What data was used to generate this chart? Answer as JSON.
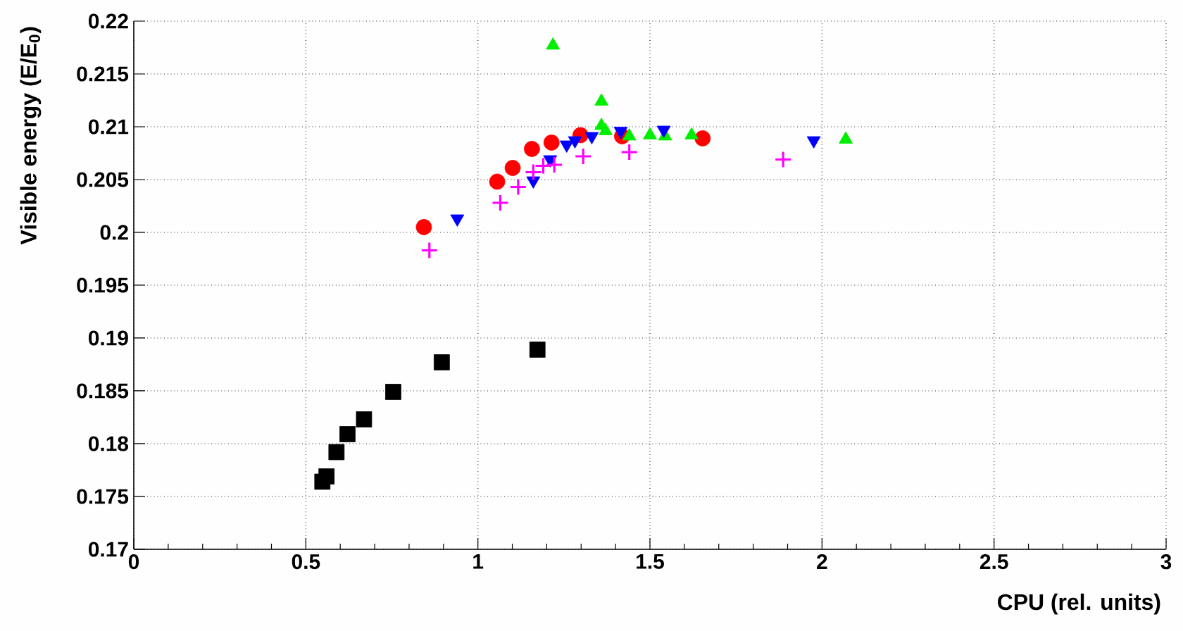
{
  "chart_data": {
    "type": "scatter",
    "xlabel": "CPU (rel. units)",
    "ylabel": "Visible energy (E/E$_{0}$)",
    "xlim": [
      0,
      3
    ],
    "ylim": [
      0.17,
      0.22
    ],
    "xticks": [
      0,
      0.5,
      1,
      1.5,
      2,
      2.5,
      3
    ],
    "yticks": [
      0.17,
      0.175,
      0.18,
      0.185,
      0.19,
      0.195,
      0.2,
      0.205,
      0.21,
      0.215,
      0.22
    ],
    "grid": true,
    "series": [
      {
        "color": "#000000",
        "marker": "square",
        "x": [
          0.548,
          0.56,
          0.589,
          0.621,
          0.669,
          0.754,
          0.895,
          1.173
        ],
        "values": [
          0.1764,
          0.1769,
          0.1792,
          0.1809,
          0.1823,
          0.1849,
          0.1877,
          0.1889
        ]
      },
      {
        "color": "#ff0000",
        "marker": "circle",
        "x": [
          0.843,
          1.056,
          1.101,
          1.157,
          1.214,
          1.298,
          1.419,
          1.653
        ],
        "values": [
          0.2005,
          0.2048,
          0.2061,
          0.2079,
          0.2085,
          0.2092,
          0.2091,
          0.2089
        ]
      },
      {
        "color": "#00ee00",
        "marker": "triangle",
        "x": [
          1.218,
          1.359,
          1.359,
          1.371,
          1.44,
          1.5,
          1.544,
          1.621,
          2.069
        ],
        "values": [
          0.2177,
          0.2124,
          0.2101,
          0.2096,
          0.2091,
          0.2092,
          0.2091,
          0.2092,
          0.2088
        ]
      },
      {
        "color": "#0000ff",
        "marker": "triangle-down",
        "x": [
          0.94,
          1.161,
          1.21,
          1.258,
          1.282,
          1.331,
          1.415,
          1.54,
          1.976
        ],
        "values": [
          0.2013,
          0.2049,
          0.2069,
          0.2083,
          0.2087,
          0.2091,
          0.2096,
          0.2097,
          0.2087
        ]
      },
      {
        "color": "#ff00ff",
        "marker": "cross",
        "x": [
          0.859,
          1.065,
          1.117,
          1.161,
          1.19,
          1.222,
          1.306,
          1.44,
          1.887
        ],
        "values": [
          0.1983,
          0.2028,
          0.2043,
          0.2057,
          0.2063,
          0.2064,
          0.2072,
          0.2076,
          0.2069
        ]
      }
    ]
  }
}
